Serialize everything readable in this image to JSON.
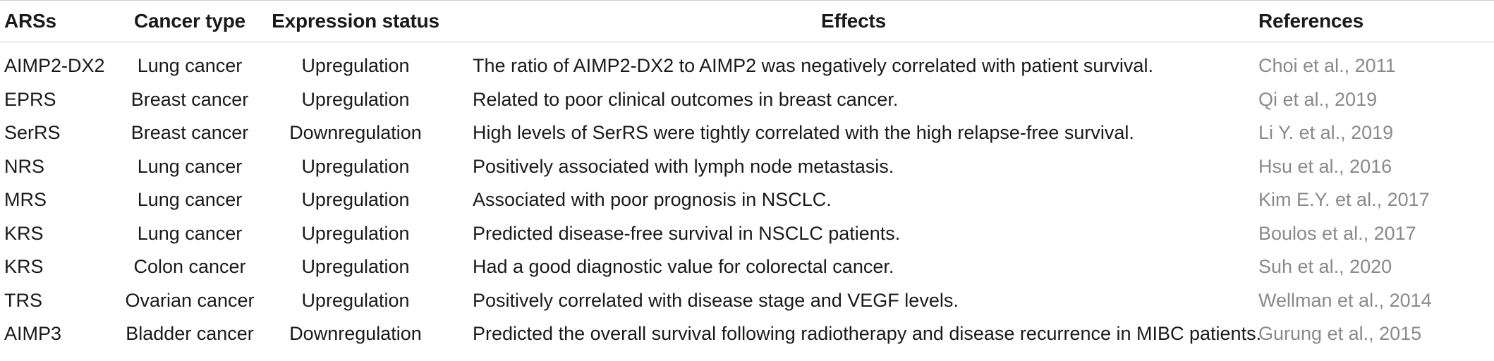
{
  "table": {
    "headers": {
      "ars": "ARSs",
      "cancer_type": "Cancer type",
      "expression_status": "Expression status",
      "effects": "Effects",
      "references": "References"
    },
    "rows": [
      {
        "ars": "AIMP2-DX2",
        "cancer_type": "Lung cancer",
        "expression_status": "Upregulation",
        "effects": "The ratio of AIMP2-DX2 to AIMP2 was negatively correlated with patient survival.",
        "references": "Choi et al., 2011"
      },
      {
        "ars": "EPRS",
        "cancer_type": "Breast cancer",
        "expression_status": "Upregulation",
        "effects": "Related to poor clinical outcomes in breast cancer.",
        "references": "Qi et al., 2019"
      },
      {
        "ars": "SerRS",
        "cancer_type": "Breast cancer",
        "expression_status": "Downregulation",
        "effects": "High levels of SerRS were tightly correlated with the high relapse-free survival.",
        "references": "Li Y. et al., 2019"
      },
      {
        "ars": "NRS",
        "cancer_type": "Lung cancer",
        "expression_status": "Upregulation",
        "effects": "Positively associated with lymph node metastasis.",
        "references": "Hsu et al., 2016"
      },
      {
        "ars": "MRS",
        "cancer_type": "Lung cancer",
        "expression_status": "Upregulation",
        "effects": "Associated with poor prognosis in NSCLC.",
        "references": "Kim E.Y. et al., 2017"
      },
      {
        "ars": "KRS",
        "cancer_type": "Lung cancer",
        "expression_status": "Upregulation",
        "effects": "Predicted disease-free survival in NSCLC patients.",
        "references": "Boulos et al., 2017"
      },
      {
        "ars": "KRS",
        "cancer_type": "Colon cancer",
        "expression_status": "Upregulation",
        "effects": "Had a good diagnostic value for colorectal cancer.",
        "references": "Suh et al., 2020"
      },
      {
        "ars": "TRS",
        "cancer_type": "Ovarian cancer",
        "expression_status": "Upregulation",
        "effects": "Positively correlated with disease stage and VEGF levels.",
        "references": "Wellman et al., 2014"
      },
      {
        "ars": "AIMP3",
        "cancer_type": "Bladder cancer",
        "expression_status": "Downregulation",
        "effects": "Predicted the overall survival following radiotherapy and disease recurrence in MIBC patients.",
        "references": "Gurung et al., 2015"
      }
    ]
  },
  "colors": {
    "text": "#1a1a1a",
    "reference_link": "#8a8a8a",
    "rule": "#cfcfcf"
  }
}
